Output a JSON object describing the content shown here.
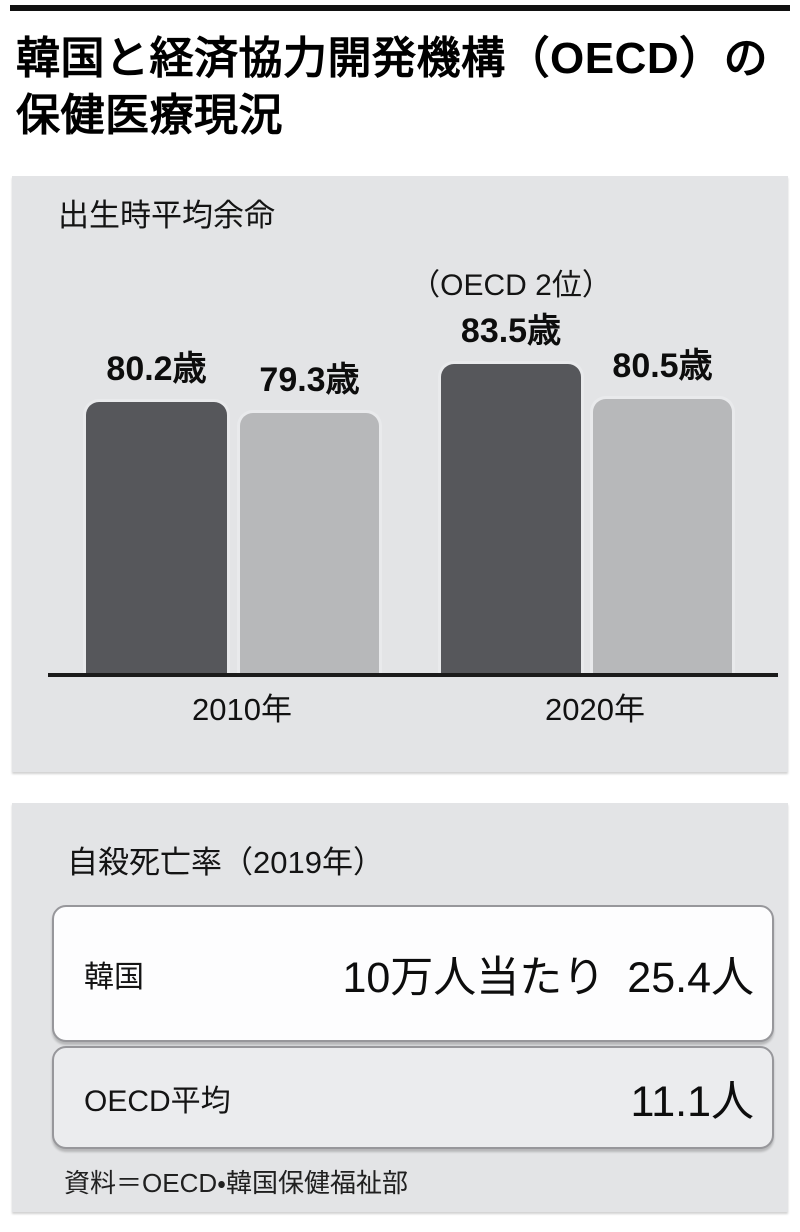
{
  "page": {
    "title_line1": "韓国と経済協力開発機構（OECD）の",
    "title_line2": "保健医療現況",
    "source": "資料＝OECD・韓国保健福祉部"
  },
  "colors": {
    "korea_bar": "#56575b",
    "oecd_bar": "#b7b8ba",
    "panel_bg": "#e3e4e6",
    "axis": "#1b1b1b"
  },
  "chart_data": [
    {
      "type": "bar",
      "title": "出生時平均余命",
      "categories": [
        "2010年",
        "2020年"
      ],
      "series": [
        {
          "name": "韓国",
          "values": [
            80.2,
            83.5
          ]
        },
        {
          "name": "OECD平均",
          "values": [
            79.3,
            80.5
          ]
        }
      ],
      "bar_value_labels": [
        "80.2歳",
        "79.3歳",
        "83.5歳",
        "80.5歳"
      ],
      "annotation": {
        "text": "（OECD 2位）",
        "applies_to": "韓国 2020年 83.5歳"
      },
      "unit": "歳",
      "ylim": [
        56.4,
        90
      ],
      "grid": false,
      "legend": "none"
    },
    {
      "type": "table",
      "title": "自殺死亡率（2019年）",
      "rows": [
        {
          "label": "韓国",
          "prefix": "10万人当たり",
          "value_text": "25.4人",
          "value": 25.4
        },
        {
          "label": "OECD平均",
          "prefix": "",
          "value_text": "11.1人",
          "value": 11.1
        }
      ]
    }
  ]
}
